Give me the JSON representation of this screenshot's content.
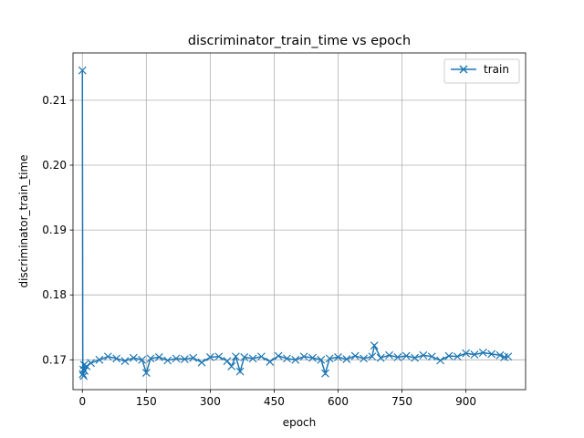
{
  "chart_data": {
    "type": "line",
    "title": "discriminator_train_time vs epoch",
    "xlabel": "epoch",
    "ylabel": "discriminator_train_time",
    "xlim": [
      -22,
      1040
    ],
    "ylim": [
      0.1654,
      0.2173
    ],
    "xticks": [
      0,
      150,
      300,
      450,
      600,
      750,
      900
    ],
    "yticks": [
      0.17,
      0.18,
      0.19,
      0.2,
      0.21
    ],
    "ytick_labels": [
      "0.17",
      "0.18",
      "0.19",
      "0.20",
      "0.21"
    ],
    "grid": true,
    "legend_position": "top-right",
    "marker": "x",
    "color": "#1f77b4",
    "series": [
      {
        "name": "train",
        "x": [
          0,
          1,
          2,
          3,
          4,
          5,
          10,
          20,
          40,
          60,
          80,
          100,
          120,
          140,
          150,
          160,
          180,
          200,
          220,
          240,
          260,
          280,
          300,
          320,
          340,
          350,
          360,
          370,
          380,
          400,
          420,
          440,
          460,
          480,
          500,
          520,
          540,
          560,
          570,
          580,
          600,
          620,
          640,
          660,
          680,
          685,
          700,
          720,
          740,
          760,
          780,
          800,
          820,
          840,
          860,
          880,
          900,
          920,
          940,
          960,
          980,
          990,
          999
        ],
        "y": [
          0.2146,
          0.1678,
          0.1685,
          0.1675,
          0.1692,
          0.1683,
          0.169,
          0.1695,
          0.17,
          0.1705,
          0.1702,
          0.1698,
          0.1703,
          0.17,
          0.168,
          0.1702,
          0.1704,
          0.1699,
          0.1702,
          0.1701,
          0.1703,
          0.1696,
          0.1704,
          0.1705,
          0.1698,
          0.169,
          0.1705,
          0.1682,
          0.1704,
          0.1702,
          0.1705,
          0.1697,
          0.1706,
          0.1702,
          0.17,
          0.1705,
          0.1703,
          0.17,
          0.1679,
          0.1702,
          0.1704,
          0.1701,
          0.1706,
          0.1702,
          0.1705,
          0.1722,
          0.1703,
          0.1707,
          0.1704,
          0.1706,
          0.1703,
          0.1707,
          0.1705,
          0.1699,
          0.1706,
          0.1705,
          0.171,
          0.1708,
          0.1711,
          0.1709,
          0.1707,
          0.1704,
          0.1705
        ]
      }
    ]
  }
}
